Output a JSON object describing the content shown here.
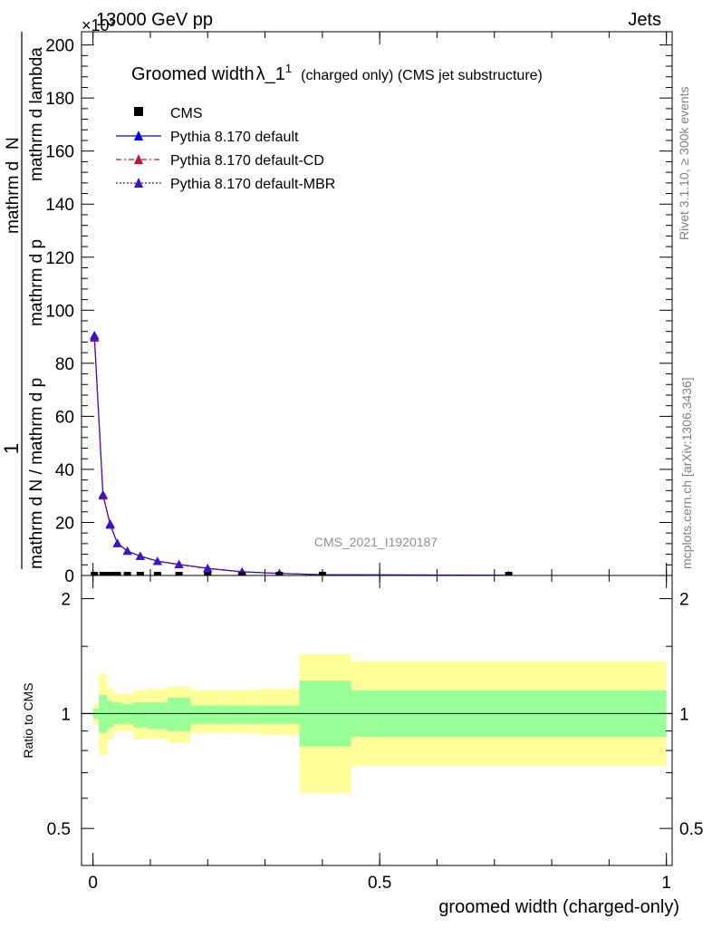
{
  "header": {
    "energy": "13000 GeV pp",
    "process": "Jets",
    "exponent": "×10³"
  },
  "side_labels": {
    "rivet": "Rivet 3.1.10, ≥ 300k events",
    "mcplots": "mcplots.cern.ch [arXiv:1306.3436]"
  },
  "watermark": "CMS_2021_I1920187",
  "colors": {
    "cms": "#000000",
    "default": "#0000ff",
    "cd": "#c0143c",
    "mbr": "#3c14c8",
    "band_stat": "#99ff99",
    "band_total": "#ffff99"
  },
  "chart_data": [
    {
      "type": "line",
      "title": "Groomed widthλ_1¹ (charged only) (CMS jet substructure)",
      "title_parts": [
        "Groomed width",
        "λ_1",
        "1",
        "(charged only) (CMS jet substructure)"
      ],
      "ylabel_numerator": "1",
      "ylabel_denominator_a": "mathrm d N / mathrm d p_T",
      "ylabel_denominator_b": "mathrm d^{2}N",
      "ylabel_denominator_c": "mathrm d p_T mathrm d lambda",
      "ylabel_line1": "mathrm d N / mathrm d p",
      "ylabel_line2": "mathrm d p",
      "ylabel_line3": "mathrm d lambda",
      "ylabel_top": "mathrm d",
      "ylabel_top2": "N",
      "ylim": [
        0,
        205000
      ],
      "xlim": [
        -0.02,
        1.01
      ],
      "yticks": [
        0,
        20,
        40,
        60,
        80,
        100,
        120,
        140,
        160,
        180,
        200
      ],
      "ytick_labels": [
        "0",
        "20",
        "40",
        "60",
        "80",
        "100",
        "120",
        "140",
        "160",
        "180",
        "200"
      ],
      "y_scale_exponent": "10³",
      "legend_position": "top-left",
      "legend": [
        "CMS",
        "Pythia 8.170 default",
        "Pythia 8.170 default-CD",
        "Pythia 8.170 default-MBR"
      ],
      "x_points": [
        0.0025,
        0.0175,
        0.03,
        0.0425,
        0.06,
        0.0825,
        0.1125,
        0.15,
        0.2,
        0.26,
        0.325,
        0.4,
        0.725
      ],
      "series": [
        {
          "name": "CMS",
          "values": [
            1.0,
            1.0,
            1.0,
            1.0,
            1.0,
            1.0,
            1.0,
            1.0,
            1.0,
            0.8,
            0.6,
            0.5,
            0.8
          ]
        },
        {
          "name": "Pythia 8.170 default",
          "values": [
            90500,
            30500,
            19000,
            12200,
            9200,
            7300,
            5400,
            4200,
            2700,
            1400,
            800,
            300,
            60
          ]
        },
        {
          "name": "Pythia 8.170 default-CD",
          "values": [
            89500,
            30000,
            19500,
            12000,
            9200,
            7200,
            5300,
            4100,
            2600,
            1300,
            750,
            280,
            55
          ]
        },
        {
          "name": "Pythia 8.170 default-MBR",
          "values": [
            90000,
            30300,
            19200,
            12100,
            9200,
            7250,
            5350,
            4150,
            2650,
            1350,
            780,
            290,
            58
          ]
        }
      ]
    },
    {
      "type": "area",
      "ylabel": "Ratio to CMS",
      "xlabel": "groomed width (charged-only)",
      "ylim": [
        0.4,
        2.3
      ],
      "log_scale": true,
      "yticks": [
        0.5,
        1,
        2
      ],
      "ytick_labels": [
        "0.5",
        "1",
        "2"
      ],
      "xticks": [
        0,
        0.5,
        1
      ],
      "xtick_labels": [
        "0",
        "0.5",
        "1"
      ],
      "bins": [
        [
          0.0,
          0.01,
          0.97,
          1.03,
          0.94,
          1.06
        ],
        [
          0.01,
          0.025,
          0.89,
          1.12,
          0.78,
          1.27
        ],
        [
          0.025,
          0.035,
          0.92,
          1.08,
          0.86,
          1.17
        ],
        [
          0.035,
          0.05,
          0.94,
          1.07,
          0.9,
          1.13
        ],
        [
          0.05,
          0.07,
          0.94,
          1.06,
          0.9,
          1.13
        ],
        [
          0.07,
          0.095,
          0.92,
          1.07,
          0.86,
          1.15
        ],
        [
          0.095,
          0.13,
          0.91,
          1.07,
          0.86,
          1.16
        ],
        [
          0.13,
          0.17,
          0.9,
          1.1,
          0.84,
          1.18
        ],
        [
          0.17,
          0.23,
          0.94,
          1.05,
          0.89,
          1.15
        ],
        [
          0.23,
          0.29,
          0.94,
          1.05,
          0.89,
          1.15
        ],
        [
          0.29,
          0.36,
          0.94,
          1.05,
          0.88,
          1.16
        ],
        [
          0.36,
          0.45,
          0.82,
          1.22,
          0.62,
          1.43
        ],
        [
          0.45,
          1.0,
          0.87,
          1.15,
          0.73,
          1.37
        ]
      ]
    }
  ]
}
